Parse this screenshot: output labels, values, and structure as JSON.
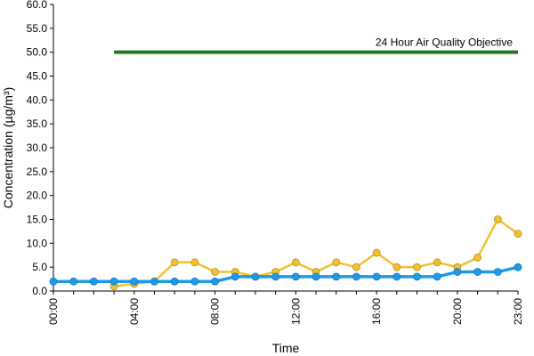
{
  "chart_data": {
    "type": "line",
    "title": "",
    "xlabel": "Time",
    "ylabel": "Concentration (µg/m³)",
    "ylim": [
      0,
      60
    ],
    "yticks": [
      "0.0",
      "5.0",
      "10.0",
      "15.0",
      "20.0",
      "25.0",
      "30.0",
      "35.0",
      "40.0",
      "45.0",
      "50.0",
      "55.0",
      "60.0"
    ],
    "x": [
      "00:00",
      "01:00",
      "02:00",
      "03:00",
      "04:00",
      "05:00",
      "06:00",
      "07:00",
      "08:00",
      "09:00",
      "10:00",
      "11:00",
      "12:00",
      "13:00",
      "14:00",
      "15:00",
      "16:00",
      "17:00",
      "18:00",
      "19:00",
      "20:00",
      "21:00",
      "22:00",
      "23:00"
    ],
    "xtick_labels": [
      "00:00",
      "04:00",
      "08:00",
      "12:00",
      "16:00",
      "20:00",
      "23:00"
    ],
    "grid": false,
    "legend": "none",
    "series": [
      {
        "color": "#f2c12e",
        "values": [
          null,
          null,
          null,
          1,
          1.5,
          2,
          6,
          6,
          4,
          4,
          3,
          4,
          6,
          4,
          6,
          5,
          8,
          5,
          5,
          6,
          5,
          7,
          15,
          12
        ]
      },
      {
        "color": "#1e9be8",
        "values": [
          2,
          2,
          2,
          2,
          2,
          2,
          2,
          2,
          2,
          3,
          3,
          3,
          3,
          3,
          3,
          3,
          3,
          3,
          3,
          3,
          4,
          4,
          4,
          5
        ]
      }
    ],
    "objective": {
      "label": "24 Hour Air Quality Objective",
      "value": 50,
      "x_start": "03:00",
      "x_end": "23:00",
      "color": "#1f7a1f"
    }
  }
}
